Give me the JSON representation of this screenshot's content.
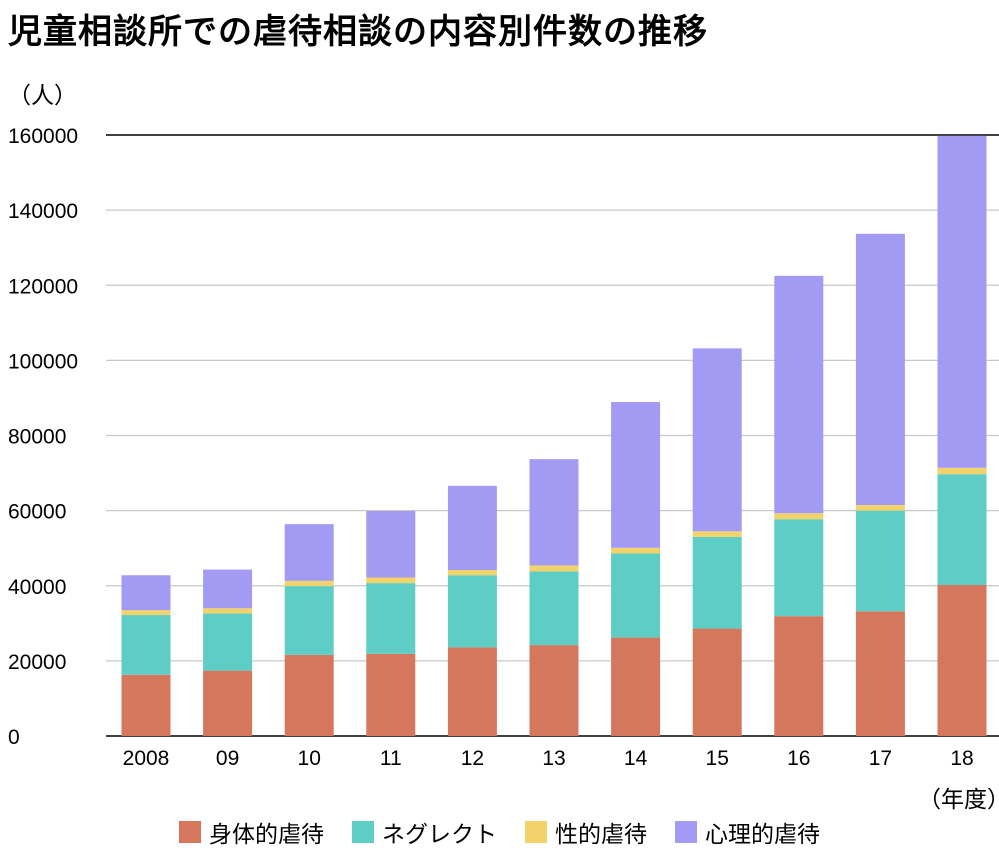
{
  "title": "児童相談所での虐待相談の内容別件数の推移",
  "y_unit": "（人）",
  "x_unit": "（年度）",
  "chart_data": {
    "type": "bar",
    "stacked": true,
    "title": "児童相談所での虐待相談の内容別件数の推移",
    "ylabel": "（人）",
    "xlabel": "（年度）",
    "ylim": [
      0,
      160000
    ],
    "yticks": [
      "0",
      "20000",
      "40000",
      "60000",
      "80000",
      "100000",
      "120000",
      "140000",
      "160000"
    ],
    "grid": true,
    "legend_position": "bottom",
    "categories": [
      "2008",
      "09",
      "10",
      "11",
      "12",
      "13",
      "14",
      "15",
      "16",
      "17",
      "18"
    ],
    "series": [
      {
        "name": "身体的虐待",
        "color": "#d4775c",
        "values": [
          16300,
          17400,
          21600,
          21900,
          23600,
          24200,
          26200,
          28600,
          31900,
          33200,
          40200
        ]
      },
      {
        "name": "ネグレクト",
        "color": "#5ecdc6",
        "values": [
          15900,
          15200,
          18300,
          18800,
          19200,
          19600,
          22400,
          24400,
          25800,
          26800,
          29500
        ]
      },
      {
        "name": "性的虐待",
        "color": "#f2d36b",
        "values": [
          1300,
          1400,
          1400,
          1500,
          1400,
          1600,
          1500,
          1500,
          1600,
          1500,
          1700
        ]
      },
      {
        "name": "心理的虐待",
        "color": "#a39af3",
        "values": [
          9300,
          10300,
          15100,
          17700,
          22400,
          28300,
          38800,
          48700,
          63200,
          72200,
          88400
        ]
      }
    ]
  }
}
